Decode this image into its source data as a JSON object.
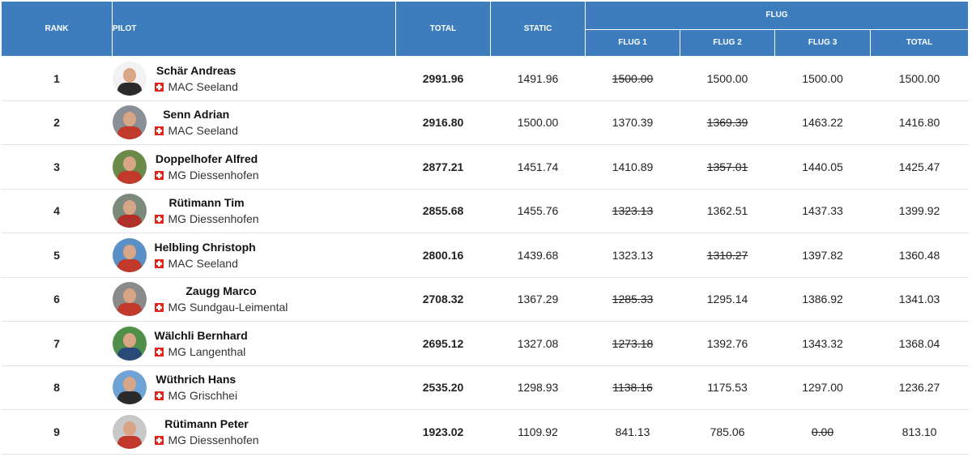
{
  "header": {
    "rank": "RANK",
    "pilot": "PILOT",
    "total": "TOTAL",
    "static": "STATIC",
    "flug": "FLUG",
    "flug1": "FLUG 1",
    "flug2": "FLUG 2",
    "flug3": "FLUG 3",
    "flug_total": "TOTAL"
  },
  "colors": {
    "header_bg": "#3d7dbd",
    "link": "#3d7dbd",
    "flag": "#e1251b"
  },
  "rows": [
    {
      "rank": "1",
      "name": "Schär Andreas",
      "club": "MAC Seeland",
      "total": "2991.96",
      "static": "1491.96",
      "flug1": "1500.00",
      "flug2": "1500.00",
      "flug3": "1500.00",
      "flug_total": "1500.00",
      "struck": "flug1",
      "avatar_colors": [
        "#f2f2f2",
        "#2b2b2b"
      ]
    },
    {
      "rank": "2",
      "name": "Senn Adrian",
      "club": "MAC Seeland",
      "total": "2916.80",
      "static": "1500.00",
      "flug1": "1370.39",
      "flug2": "1369.39",
      "flug3": "1463.22",
      "flug_total": "1416.80",
      "struck": "flug2",
      "avatar_colors": [
        "#8a8f96",
        "#c0392b"
      ]
    },
    {
      "rank": "3",
      "name": "Doppelhofer Alfred",
      "club": "MG Diessenhofen",
      "total": "2877.21",
      "static": "1451.74",
      "flug1": "1410.89",
      "flug2": "1357.01",
      "flug3": "1440.05",
      "flug_total": "1425.47",
      "struck": "flug2",
      "avatar_colors": [
        "#6a8a4a",
        "#c0392b"
      ]
    },
    {
      "rank": "4",
      "name": "Rütimann Tim",
      "club": "MG Diessenhofen",
      "total": "2855.68",
      "static": "1455.76",
      "flug1": "1323.13",
      "flug2": "1362.51",
      "flug3": "1437.33",
      "flug_total": "1399.92",
      "struck": "flug1",
      "avatar_colors": [
        "#7b8a7a",
        "#b0302a"
      ]
    },
    {
      "rank": "5",
      "name": "Helbling Christoph",
      "club": "MAC Seeland",
      "total": "2800.16",
      "static": "1439.68",
      "flug1": "1323.13",
      "flug2": "1310.27",
      "flug3": "1397.82",
      "flug_total": "1360.48",
      "struck": "flug2",
      "avatar_colors": [
        "#5b8fc7",
        "#c0392b"
      ]
    },
    {
      "rank": "6",
      "name": "Zaugg Marco",
      "club": "MG Sundgau-Leimental",
      "total": "2708.32",
      "static": "1367.29",
      "flug1": "1285.33",
      "flug2": "1295.14",
      "flug3": "1386.92",
      "flug_total": "1341.03",
      "struck": "flug1",
      "avatar_colors": [
        "#8a8a8a",
        "#c0392b"
      ]
    },
    {
      "rank": "7",
      "name": "Wälchli Bernhard",
      "club": "MG Langenthal",
      "total": "2695.12",
      "static": "1327.08",
      "flug1": "1273.18",
      "flug2": "1392.76",
      "flug3": "1343.32",
      "flug_total": "1368.04",
      "struck": "flug1",
      "avatar_colors": [
        "#4f8f4a",
        "#2a4a7a"
      ]
    },
    {
      "rank": "8",
      "name": "Wüthrich Hans",
      "club": "MG Grischhei",
      "total": "2535.20",
      "static": "1298.93",
      "flug1": "1138.16",
      "flug2": "1175.53",
      "flug3": "1297.00",
      "flug_total": "1236.27",
      "struck": "flug1",
      "avatar_colors": [
        "#6fa3d6",
        "#2b2b2b"
      ]
    },
    {
      "rank": "9",
      "name": "Rütimann Peter",
      "club": "MG Diessenhofen",
      "total": "1923.02",
      "static": "1109.92",
      "flug1": "841.13",
      "flug2": "785.06",
      "flug3": "0.00",
      "flug_total": "813.10",
      "struck": "flug3",
      "avatar_colors": [
        "#c8c8c8",
        "#c0392b"
      ]
    }
  ]
}
